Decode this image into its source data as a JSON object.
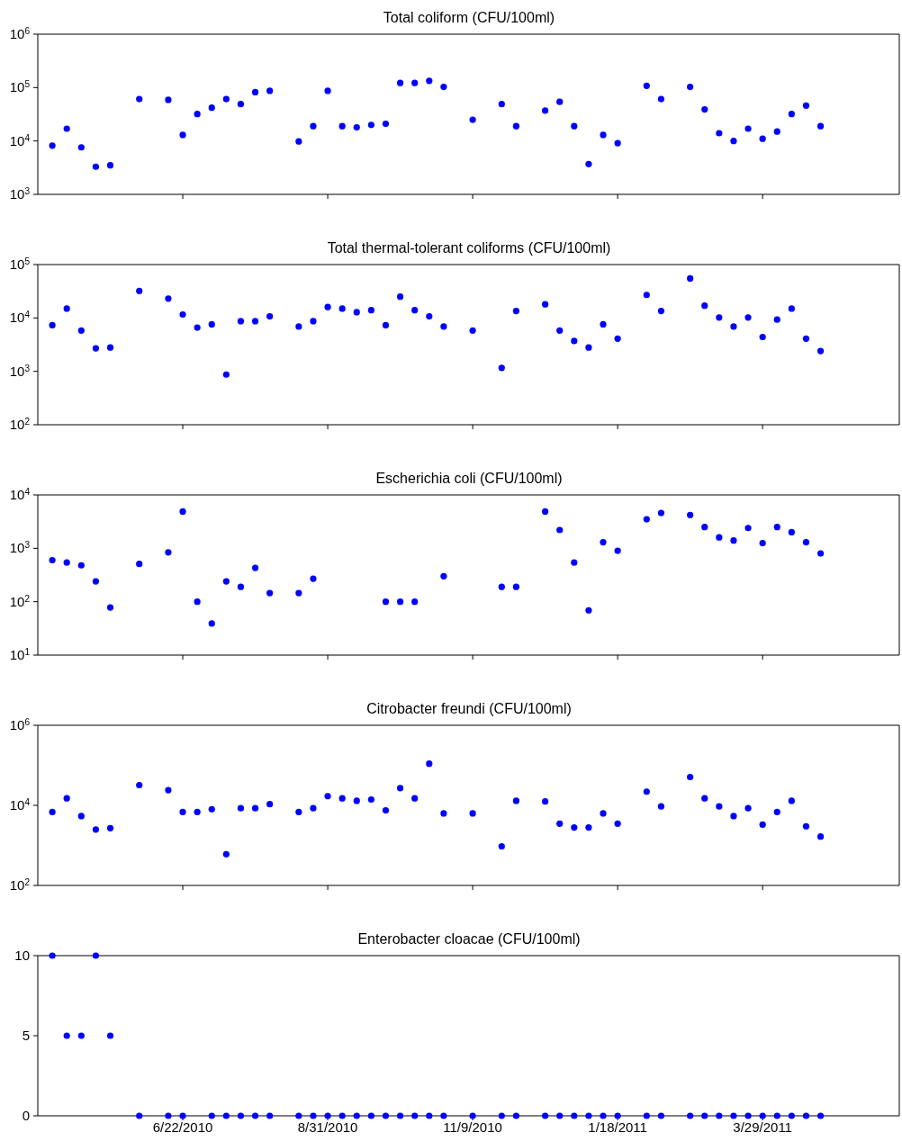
{
  "chart_data": [
    {
      "type": "scatter",
      "title": "Total coliform (CFU/100ml)",
      "color": "#0000ff",
      "marker": "circle",
      "log": "y",
      "tick_labels": "y",
      "x": [
        "2010-04-20",
        "2010-04-27",
        "2010-05-04",
        "2010-05-11",
        "2010-05-18",
        "2010-06-01",
        "2010-06-15",
        "2010-06-22",
        "2010-06-29",
        "2010-07-06",
        "2010-07-13",
        "2010-07-20",
        "2010-07-27",
        "2010-08-03",
        "2010-08-17",
        "2010-08-24",
        "2010-08-31",
        "2010-09-07",
        "2010-09-14",
        "2010-09-21",
        "2010-09-28",
        "2010-10-05",
        "2010-10-12",
        "2010-10-19",
        "2010-10-26",
        "2010-11-09",
        "2010-11-23",
        "2010-11-30",
        "2010-12-14",
        "2010-12-21",
        "2010-12-28",
        "2011-01-04",
        "2011-01-11",
        "2011-01-18",
        "2011-02-01",
        "2011-02-08",
        "2011-02-22",
        "2011-03-01",
        "2011-03-08",
        "2011-03-15",
        "2011-03-22",
        "2011-03-29",
        "2011-04-05",
        "2011-04-12",
        "2011-04-19",
        "2011-04-26"
      ],
      "values": [
        8200,
        17000,
        7600,
        3300,
        3500,
        61000,
        59000,
        13000,
        32000,
        42000,
        61000,
        49000,
        82000,
        87000,
        9800,
        19000,
        87000,
        19000,
        18000,
        20000,
        21000,
        122000,
        122000,
        134000,
        103000,
        25000,
        49000,
        19000,
        37000,
        54000,
        19000,
        3700,
        13000,
        9100,
        108000,
        61000,
        103000,
        39000,
        14000,
        10000,
        17000,
        11000,
        15000,
        32000,
        46000,
        19000
      ],
      "xlim": [
        "2010-04-13",
        "2011-06-03"
      ],
      "xticks": [
        {
          "value": "2010-06-22",
          "label": null
        },
        {
          "value": "2010-08-31",
          "label": null
        },
        {
          "value": "2010-11-09",
          "label": null
        },
        {
          "value": "2011-01-18",
          "label": null
        },
        {
          "value": "2011-03-29",
          "label": null
        }
      ],
      "ylim": [
        1000,
        1000000
      ],
      "yticks": [
        {
          "value": 1000,
          "label": "10$^{3}$"
        },
        {
          "value": 10000,
          "label": "10$^{4}$"
        },
        {
          "value": 100000,
          "label": "10$^{5}$"
        },
        {
          "value": 1000000,
          "label": "10$^{6}$"
        }
      ]
    },
    {
      "type": "scatter",
      "title": "Total thermal-tolerant coliforms (CFU/100ml)",
      "color": "#0000ff",
      "marker": "circle",
      "log": "y",
      "tick_labels": "y",
      "x": [
        "2010-04-20",
        "2010-04-27",
        "2010-05-04",
        "2010-05-11",
        "2010-05-18",
        "2010-06-01",
        "2010-06-15",
        "2010-06-22",
        "2010-06-29",
        "2010-07-06",
        "2010-07-13",
        "2010-07-20",
        "2010-07-27",
        "2010-08-03",
        "2010-08-17",
        "2010-08-24",
        "2010-08-31",
        "2010-09-07",
        "2010-09-14",
        "2010-09-21",
        "2010-09-28",
        "2010-10-05",
        "2010-10-12",
        "2010-10-19",
        "2010-10-26",
        "2010-11-09",
        "2010-11-23",
        "2010-11-30",
        "2010-12-14",
        "2010-12-21",
        "2010-12-28",
        "2011-01-04",
        "2011-01-11",
        "2011-01-18",
        "2011-02-01",
        "2011-02-08",
        "2011-02-22",
        "2011-03-01",
        "2011-03-08",
        "2011-03-15",
        "2011-03-22",
        "2011-03-29",
        "2011-04-05",
        "2011-04-12",
        "2011-04-19",
        "2011-04-26"
      ],
      "values": [
        7300,
        15000,
        5800,
        2700,
        2800,
        32000,
        23000,
        11600,
        6600,
        7600,
        870,
        8700,
        8700,
        10700,
        6900,
        8700,
        16000,
        15000,
        12800,
        14000,
        7300,
        25000,
        14000,
        10700,
        6900,
        5800,
        1160,
        13500,
        18000,
        5800,
        3700,
        2800,
        7600,
        4100,
        27000,
        13500,
        55000,
        17000,
        10200,
        6900,
        10200,
        4400,
        9300,
        15000,
        4100,
        2400
      ],
      "xlim": [
        "2010-04-13",
        "2011-06-03"
      ],
      "xticks": [
        {
          "value": "2010-06-22",
          "label": null
        },
        {
          "value": "2010-08-31",
          "label": null
        },
        {
          "value": "2010-11-09",
          "label": null
        },
        {
          "value": "2011-01-18",
          "label": null
        },
        {
          "value": "2011-03-29",
          "label": null
        }
      ],
      "ylim": [
        100,
        100000
      ],
      "yticks": [
        {
          "value": 100,
          "label": "10$^{2}$"
        },
        {
          "value": 1000,
          "label": "10$^{3}$"
        },
        {
          "value": 10000,
          "label": "10$^{4}$"
        },
        {
          "value": 100000,
          "label": "10$^{5}$"
        }
      ]
    },
    {
      "type": "scatter",
      "title": "Escherichia coli (CFU/100ml)",
      "color": "#0000ff",
      "marker": "circle",
      "log": "y",
      "tick_labels": "y",
      "x": [
        "2010-04-20",
        "2010-04-27",
        "2010-05-04",
        "2010-05-11",
        "2010-05-18",
        "2010-06-01",
        "2010-06-15",
        "2010-06-22",
        "2010-06-29",
        "2010-07-06",
        "2010-07-13",
        "2010-07-20",
        "2010-07-27",
        "2010-08-03",
        "2010-08-17",
        "2010-08-24",
        "2010-08-31",
        "2010-09-07",
        "2010-09-14",
        "2010-09-21",
        "2010-09-28",
        "2010-10-05",
        "2010-10-12",
        "2010-10-19",
        "2010-10-26",
        "2010-11-09",
        "2010-11-23",
        "2010-11-30",
        "2010-12-14",
        "2010-12-21",
        "2010-12-28",
        "2011-01-04",
        "2011-01-11",
        "2011-01-18",
        "2011-02-01",
        "2011-02-08",
        "2011-02-22",
        "2011-03-01",
        "2011-03-08",
        "2011-03-15",
        "2011-03-22",
        "2011-03-29",
        "2011-04-05",
        "2011-04-12",
        "2011-04-19",
        "2011-04-26"
      ],
      "values": [
        600,
        540,
        480,
        240,
        78,
        510,
        840,
        4900,
        100,
        39,
        240,
        190,
        430,
        145,
        145,
        270,
        null,
        null,
        null,
        null,
        100,
        100,
        100,
        null,
        300,
        null,
        190,
        190,
        4900,
        2200,
        540,
        69,
        1300,
        900,
        3500,
        4600,
        4200,
        2500,
        1600,
        1400,
        2400,
        1250,
        2500,
        2000,
        1300,
        800
      ],
      "xlim": [
        "2010-04-13",
        "2011-06-03"
      ],
      "xticks": [
        {
          "value": "2010-06-22",
          "label": null
        },
        {
          "value": "2010-08-31",
          "label": null
        },
        {
          "value": "2010-11-09",
          "label": null
        },
        {
          "value": "2011-01-18",
          "label": null
        },
        {
          "value": "2011-03-29",
          "label": null
        }
      ],
      "ylim": [
        10,
        10000
      ],
      "yticks": [
        {
          "value": 10,
          "label": "10$^{1}$"
        },
        {
          "value": 100,
          "label": "10$^{2}$"
        },
        {
          "value": 1000,
          "label": "10$^{3}$"
        },
        {
          "value": 10000,
          "label": "10$^{4}$"
        }
      ]
    },
    {
      "type": "scatter",
      "title": "Citrobacter freundi (CFU/100ml)",
      "color": "#0000ff",
      "marker": "circle",
      "log": "y",
      "tick_labels": "y",
      "x": [
        "2010-04-20",
        "2010-04-27",
        "2010-05-04",
        "2010-05-11",
        "2010-05-18",
        "2010-06-01",
        "2010-06-15",
        "2010-06-22",
        "2010-06-29",
        "2010-07-06",
        "2010-07-13",
        "2010-07-20",
        "2010-07-27",
        "2010-08-03",
        "2010-08-17",
        "2010-08-24",
        "2010-08-31",
        "2010-09-07",
        "2010-09-14",
        "2010-09-21",
        "2010-09-28",
        "2010-10-05",
        "2010-10-12",
        "2010-10-19",
        "2010-10-26",
        "2010-11-09",
        "2010-11-23",
        "2010-11-30",
        "2010-12-14",
        "2010-12-21",
        "2010-12-28",
        "2011-01-04",
        "2011-01-11",
        "2011-01-18",
        "2011-02-01",
        "2011-02-08",
        "2011-02-22",
        "2011-03-01",
        "2011-03-08",
        "2011-03-15",
        "2011-03-22",
        "2011-03-29",
        "2011-04-05",
        "2011-04-12",
        "2011-04-19",
        "2011-04-26"
      ],
      "values": [
        6800,
        15000,
        5400,
        2500,
        2700,
        32000,
        24000,
        6800,
        6800,
        8000,
        600,
        8500,
        8500,
        10700,
        6800,
        8500,
        17000,
        15000,
        13000,
        14000,
        7500,
        27000,
        15000,
        110000,
        6300,
        6300,
        950,
        13000,
        12500,
        3500,
        2800,
        2800,
        6300,
        3500,
        22000,
        9400,
        51000,
        15000,
        9400,
        5400,
        8500,
        3300,
        6800,
        13000,
        3000,
        1660
      ],
      "xlim": [
        "2010-04-13",
        "2011-06-03"
      ],
      "xticks": [
        {
          "value": "2010-06-22",
          "label": null
        },
        {
          "value": "2010-08-31",
          "label": null
        },
        {
          "value": "2010-11-09",
          "label": null
        },
        {
          "value": "2011-01-18",
          "label": null
        },
        {
          "value": "2011-03-29",
          "label": null
        }
      ],
      "ylim": [
        100,
        1000000
      ],
      "yticks": [
        {
          "value": 100,
          "label": "10$^{2}$"
        },
        {
          "value": 10000,
          "label": "10$^{4}$"
        },
        {
          "value": 1000000,
          "label": "10$^{6}$"
        }
      ]
    },
    {
      "type": "scatter",
      "title": "Enterobacter cloacae (CFU/100ml)",
      "color": "#0000ff",
      "marker": "circle",
      "x": [
        "2010-04-20",
        "2010-04-27",
        "2010-05-04",
        "2010-05-11",
        "2010-05-18",
        "2010-06-01",
        "2010-06-15",
        "2010-06-22",
        "2010-06-29",
        "2010-07-06",
        "2010-07-13",
        "2010-07-20",
        "2010-07-27",
        "2010-08-03",
        "2010-08-17",
        "2010-08-24",
        "2010-08-31",
        "2010-09-07",
        "2010-09-14",
        "2010-09-21",
        "2010-09-28",
        "2010-10-05",
        "2010-10-12",
        "2010-10-19",
        "2010-10-26",
        "2010-11-09",
        "2010-11-23",
        "2010-11-30",
        "2010-12-14",
        "2010-12-21",
        "2010-12-28",
        "2011-01-04",
        "2011-01-11",
        "2011-01-18",
        "2011-02-01",
        "2011-02-08",
        "2011-02-22",
        "2011-03-01",
        "2011-03-08",
        "2011-03-15",
        "2011-03-22",
        "2011-03-29",
        "2011-04-05",
        "2011-04-12",
        "2011-04-19",
        "2011-04-26"
      ],
      "values": [
        10,
        5,
        5,
        10,
        5,
        0,
        0,
        0,
        null,
        0,
        0,
        0,
        0,
        0,
        0,
        0,
        0,
        0,
        0,
        0,
        0,
        0,
        0,
        0,
        0,
        0,
        0,
        0,
        0,
        0,
        0,
        0,
        0,
        0,
        0,
        0,
        0,
        0,
        0,
        0,
        0,
        0,
        0,
        0,
        0,
        0
      ],
      "xlim": [
        "2010-04-13",
        "2011-06-03"
      ],
      "xticks": [
        {
          "value": "2010-06-22",
          "label": "6/22/2010"
        },
        {
          "value": "2010-08-31",
          "label": "8/31/2010"
        },
        {
          "value": "2010-11-09",
          "label": "11/9/2010"
        },
        {
          "value": "2011-01-18",
          "label": "1/18/2011"
        },
        {
          "value": "2011-03-29",
          "label": "3/29/2011"
        }
      ],
      "ylim": [
        0,
        10
      ],
      "yticks": [
        0,
        5,
        10
      ]
    }
  ]
}
